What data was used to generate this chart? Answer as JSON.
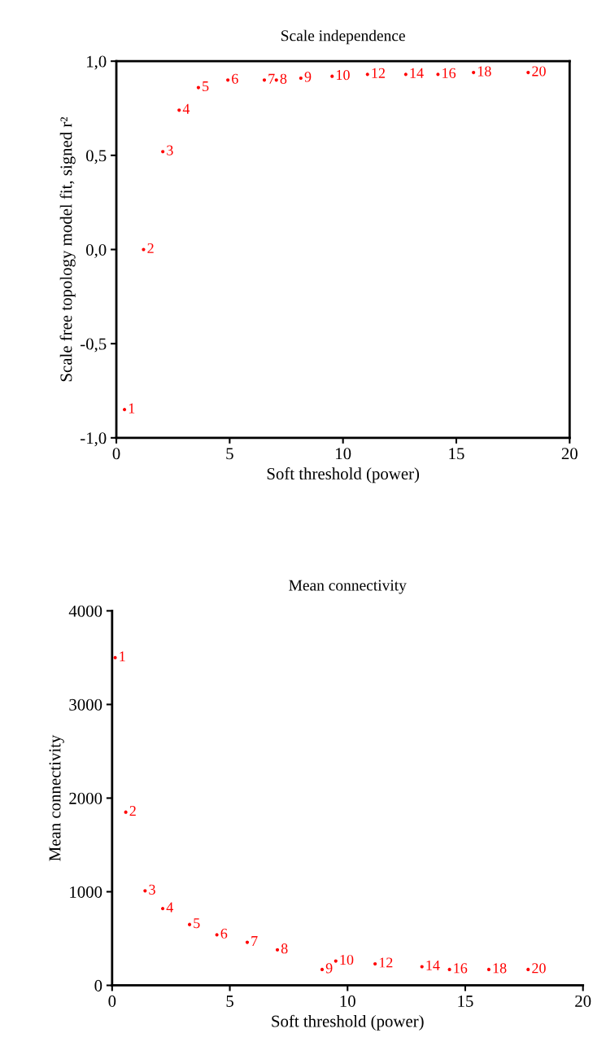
{
  "chart_data": [
    {
      "type": "scatter",
      "title": "Scale independence",
      "xlabel": "Soft threshold (power)",
      "ylabel": "Scale free topology model fit, signed r²",
      "marker": "circle",
      "series": [
        {
          "color": "#ff0000",
          "x": [
            0.36,
            1.2,
            2.05,
            2.77,
            3.62,
            4.92,
            6.53,
            7.06,
            8.14,
            9.52,
            11.08,
            12.77,
            14.19,
            15.76,
            18.17
          ],
          "values": [
            -0.85,
            0.0,
            0.52,
            0.74,
            0.86,
            0.9,
            0.9,
            0.9,
            0.91,
            0.92,
            0.93,
            0.93,
            0.93,
            0.94,
            0.94
          ]
        }
      ],
      "xlim": [
        0,
        20
      ],
      "xticks": [
        0,
        5,
        10,
        15,
        20
      ],
      "ylim": [
        -1.0,
        1.0
      ],
      "yticks": [
        {
          "value": -1.0,
          "label": "-1,0"
        },
        {
          "value": -0.5,
          "label": "-0,5"
        },
        {
          "value": 0.0,
          "label": "0,0"
        },
        {
          "value": 0.5,
          "label": "0,5"
        },
        {
          "value": 1.0,
          "label": "1,0"
        }
      ],
      "grid": false,
      "annotations": [
        {
          "text": "1",
          "x": 0.36,
          "y": -0.85
        },
        {
          "text": "2",
          "x": 1.2,
          "y": 0.0
        },
        {
          "text": "3",
          "x": 2.05,
          "y": 0.52
        },
        {
          "text": "4",
          "x": 2.77,
          "y": 0.74
        },
        {
          "text": "5",
          "x": 3.62,
          "y": 0.86
        },
        {
          "text": "6",
          "x": 4.92,
          "y": 0.9
        },
        {
          "text": "7",
          "x": 6.53,
          "y": 0.9
        },
        {
          "text": "8",
          "x": 7.06,
          "y": 0.9
        },
        {
          "text": "9",
          "x": 8.14,
          "y": 0.91
        },
        {
          "text": "10",
          "x": 9.52,
          "y": 0.92
        },
        {
          "text": "12",
          "x": 11.08,
          "y": 0.93
        },
        {
          "text": "14",
          "x": 12.77,
          "y": 0.93
        },
        {
          "text": "16",
          "x": 14.19,
          "y": 0.93
        },
        {
          "text": "18",
          "x": 15.76,
          "y": 0.94
        },
        {
          "text": "20",
          "x": 18.17,
          "y": 0.94
        }
      ]
    },
    {
      "type": "scatter",
      "title": "Mean connectivity",
      "xlabel": "Soft threshold (power)",
      "ylabel": "Mean connectivity",
      "marker": "circle",
      "series": [
        {
          "color": "#ff0000",
          "x": [
            0.13,
            0.58,
            1.4,
            2.15,
            3.29,
            4.45,
            5.74,
            7.02,
            8.92,
            9.5,
            11.17,
            13.16,
            14.33,
            16.0,
            17.67
          ],
          "values": [
            3500,
            1850,
            1010,
            820,
            650,
            540,
            460,
            380,
            170,
            260,
            230,
            200,
            170,
            170,
            170
          ]
        }
      ],
      "xlim": [
        0,
        20
      ],
      "xticks": [
        0,
        5,
        10,
        15,
        20
      ],
      "ylim": [
        0,
        4000
      ],
      "yticks": [
        0,
        1000,
        2000,
        3000,
        4000
      ],
      "grid": false,
      "annotations": [
        {
          "text": "1",
          "x": 0.13,
          "y": 3500
        },
        {
          "text": "2",
          "x": 0.58,
          "y": 1850
        },
        {
          "text": "3",
          "x": 1.4,
          "y": 1010
        },
        {
          "text": "4",
          "x": 2.15,
          "y": 820
        },
        {
          "text": "5",
          "x": 3.29,
          "y": 650
        },
        {
          "text": "6",
          "x": 4.45,
          "y": 540
        },
        {
          "text": "7",
          "x": 5.74,
          "y": 460
        },
        {
          "text": "8",
          "x": 7.02,
          "y": 380
        },
        {
          "text": "9",
          "x": 8.92,
          "y": 170
        },
        {
          "text": "10",
          "x": 9.5,
          "y": 260
        },
        {
          "text": "12",
          "x": 11.17,
          "y": 230
        },
        {
          "text": "14",
          "x": 13.16,
          "y": 200
        },
        {
          "text": "16",
          "x": 14.33,
          "y": 170
        },
        {
          "text": "18",
          "x": 16.0,
          "y": 170
        },
        {
          "text": "20",
          "x": 17.67,
          "y": 170
        }
      ]
    }
  ]
}
